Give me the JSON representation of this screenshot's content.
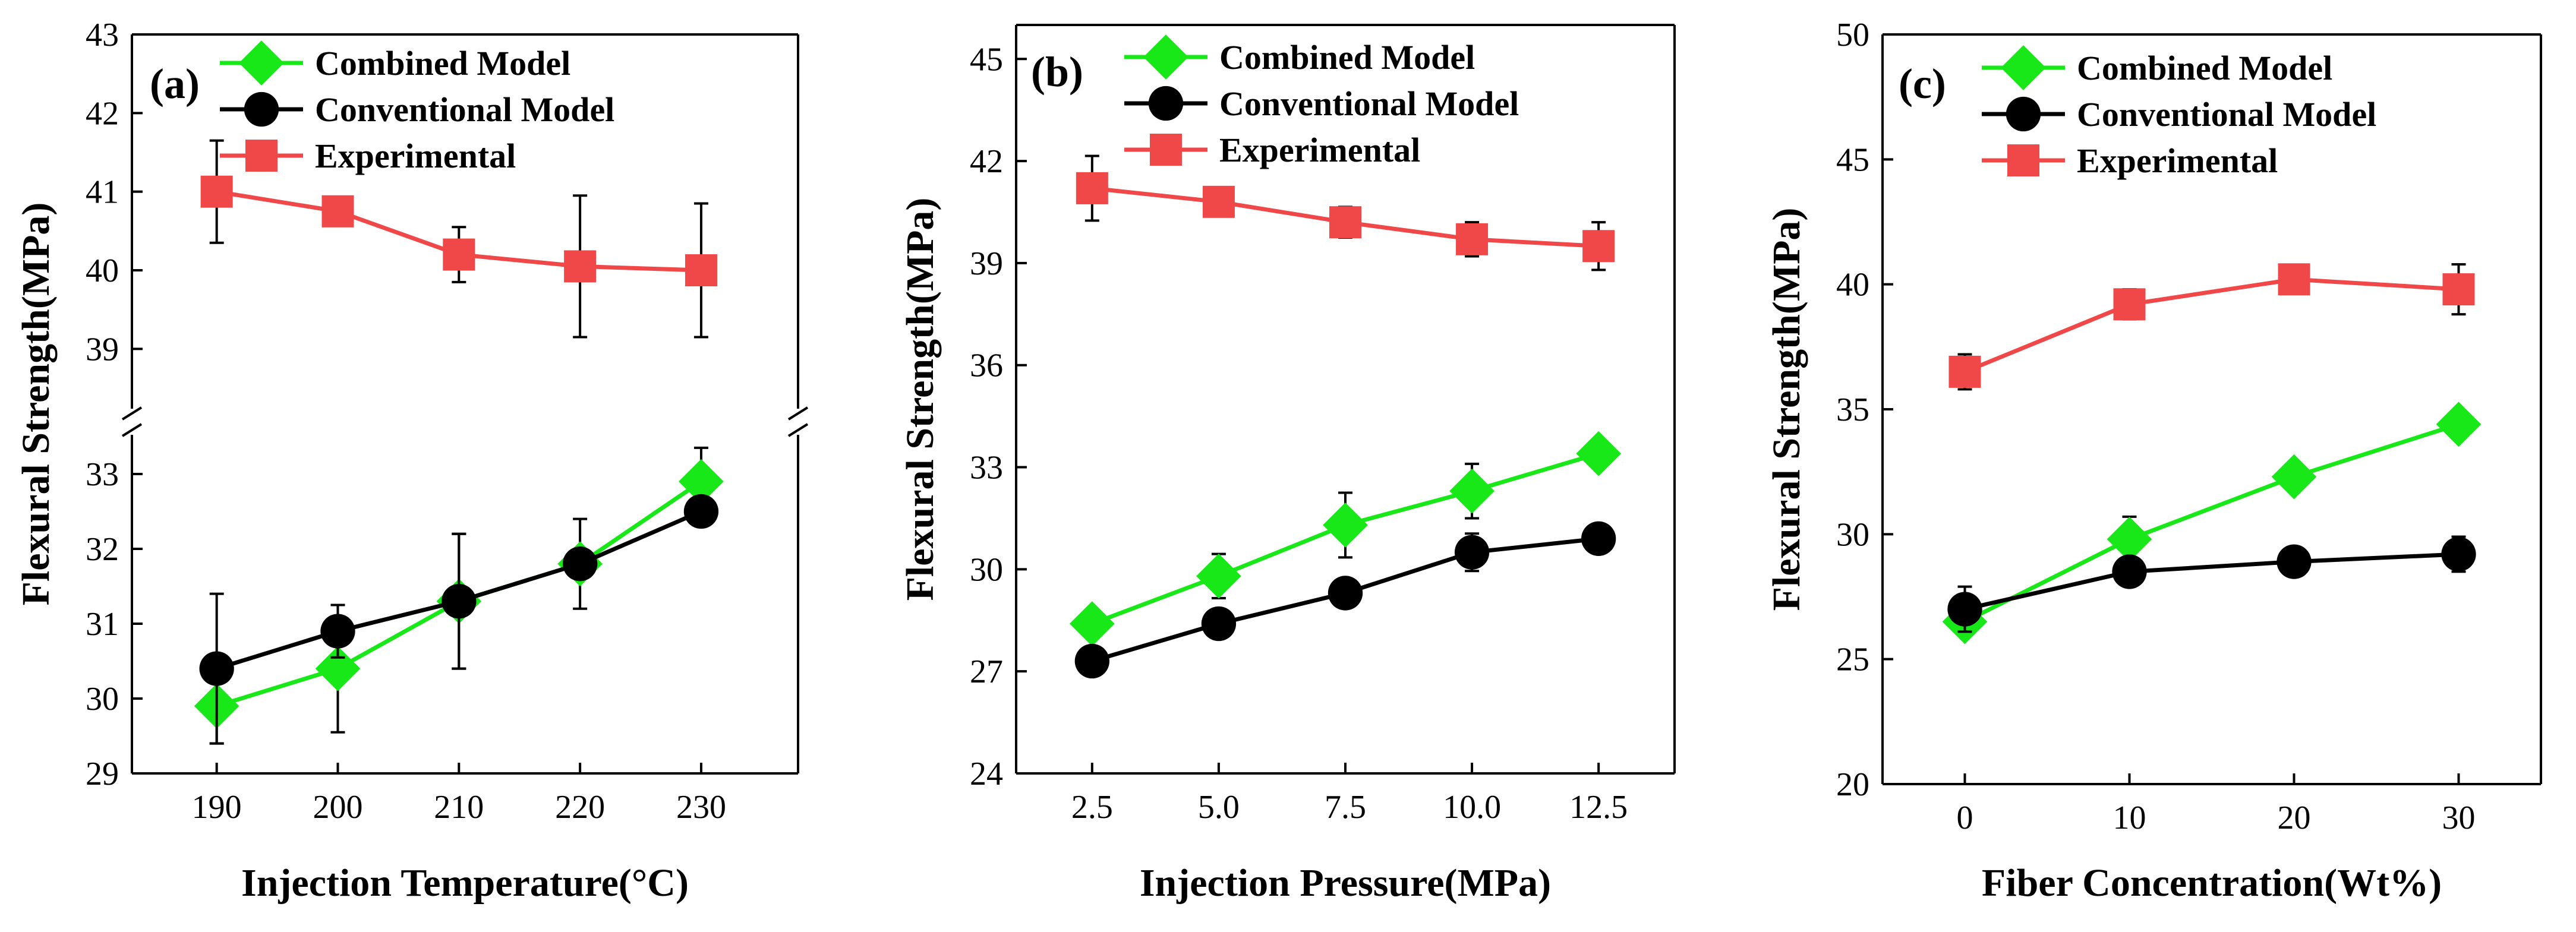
{
  "colors": {
    "combined": "#18e818",
    "conventional": "#000000",
    "experimental": "#f04848"
  },
  "chart_data": [
    {
      "type": "line",
      "panel_label": "(a)",
      "xlabel": "Injection Temperature(°C)",
      "ylabel": "Flexural Strength(MPa)",
      "x": [
        190,
        200,
        210,
        220,
        230
      ],
      "x_tick_labels": [
        "190",
        "200",
        "210",
        "220",
        "230"
      ],
      "xlim": [
        183,
        238
      ],
      "axis_break": true,
      "ylim_lower": [
        29,
        33.5
      ],
      "ylim_upper": [
        38.3,
        43
      ],
      "y_ticks_lower": [
        29,
        30,
        31,
        32,
        33
      ],
      "y_ticks_upper": [
        39,
        40,
        41,
        42,
        43
      ],
      "legend": [
        "Combined Model",
        "Conventional Model",
        "Experimental"
      ],
      "series": [
        {
          "name": "Combined Model",
          "key": "combined",
          "values": [
            29.9,
            30.4,
            31.3,
            31.8,
            32.9
          ],
          "errors": [
            0.5,
            0.85,
            0.9,
            0.6,
            0.45
          ]
        },
        {
          "name": "Conventional Model",
          "key": "conventional",
          "values": [
            30.4,
            30.9,
            31.3,
            31.8,
            32.5
          ],
          "errors": [
            1.0,
            0.35,
            0.9,
            0.0,
            0.0
          ]
        },
        {
          "name": "Experimental",
          "key": "experimental",
          "values": [
            41.0,
            40.75,
            40.2,
            40.05,
            40.0
          ],
          "errors": [
            0.65,
            0.08,
            0.35,
            0.9,
            0.85
          ]
        }
      ]
    },
    {
      "type": "line",
      "panel_label": "(b)",
      "xlabel": "Injection Pressure(MPa)",
      "ylabel": "Flexural Strength(MPa)",
      "x": [
        2.5,
        5.0,
        7.5,
        10.0,
        12.5
      ],
      "x_tick_labels": [
        "2.5",
        "5.0",
        "7.5",
        "10.0",
        "12.5"
      ],
      "xlim": [
        1.0,
        14.0
      ],
      "ylim": [
        24,
        46
      ],
      "y_ticks": [
        24,
        27,
        30,
        33,
        36,
        39,
        42,
        45
      ],
      "legend": [
        "Combined Model",
        "Conventional Model",
        "Experimental"
      ],
      "series": [
        {
          "name": "Combined Model",
          "key": "combined",
          "values": [
            28.4,
            29.8,
            31.3,
            32.3,
            33.4
          ],
          "errors": [
            0.25,
            0.65,
            0.95,
            0.8,
            0.3
          ]
        },
        {
          "name": "Conventional Model",
          "key": "conventional",
          "values": [
            27.3,
            28.4,
            29.3,
            30.5,
            30.9
          ],
          "errors": [
            0.0,
            0.0,
            0.0,
            0.55,
            0.0
          ]
        },
        {
          "name": "Experimental",
          "key": "experimental",
          "values": [
            41.2,
            40.8,
            40.2,
            39.7,
            39.5
          ],
          "errors": [
            0.95,
            0.35,
            0.45,
            0.5,
            0.7
          ]
        }
      ]
    },
    {
      "type": "line",
      "panel_label": "(c)",
      "xlabel": "Fiber Concentration(Wt%)",
      "ylabel": "Flexural Strength(MPa)",
      "x": [
        0,
        10,
        20,
        30
      ],
      "x_tick_labels": [
        "0",
        "10",
        "20",
        "30"
      ],
      "xlim": [
        -5,
        35
      ],
      "ylim": [
        20,
        50
      ],
      "y_ticks": [
        20,
        25,
        30,
        35,
        40,
        45,
        50
      ],
      "legend": [
        "Combined Model",
        "Conventional Model",
        "Experimental"
      ],
      "series": [
        {
          "name": "Combined Model",
          "key": "combined",
          "values": [
            26.5,
            29.8,
            32.3,
            34.4
          ],
          "errors": [
            0.0,
            0.9,
            0.4,
            0.5
          ]
        },
        {
          "name": "Conventional Model",
          "key": "conventional",
          "values": [
            27.0,
            28.5,
            28.9,
            29.2
          ],
          "errors": [
            0.9,
            0.0,
            0.0,
            0.7
          ]
        },
        {
          "name": "Experimental",
          "key": "experimental",
          "values": [
            36.5,
            39.2,
            40.2,
            39.8
          ],
          "errors": [
            0.7,
            0.6,
            0.5,
            1.0
          ]
        }
      ]
    }
  ]
}
